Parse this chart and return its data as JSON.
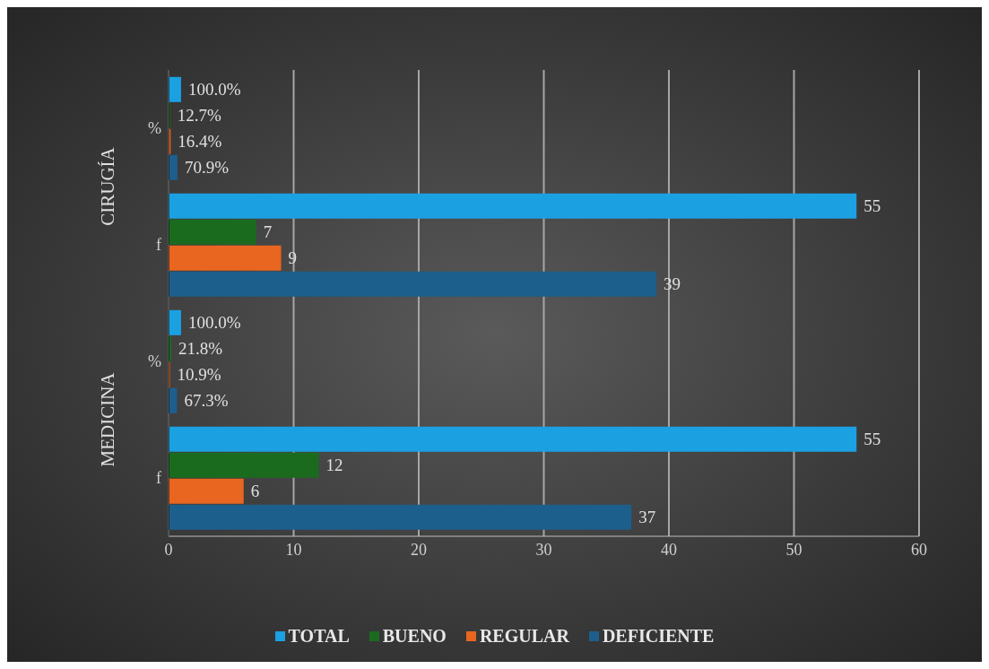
{
  "chart_data": {
    "type": "bar",
    "orientation": "horizontal",
    "categories": [
      "%",
      "f",
      "%",
      "f"
    ],
    "annotations": [
      "CIRUGÍA",
      "MEDICINA"
    ],
    "series": [
      {
        "name": "TOTAL",
        "color": "#1ba1e2",
        "values": [
          1.0,
          55,
          1.0,
          55
        ],
        "value_labels": [
          "100.0%",
          "55",
          "100.0%",
          "55"
        ]
      },
      {
        "name": "BUENO",
        "color": "#1b6b1f",
        "values": [
          0.127,
          7,
          0.218,
          12
        ],
        "value_labels": [
          "12.7%",
          "7",
          "21.8%",
          "12"
        ]
      },
      {
        "name": "REGULAR",
        "color": "#e8661f",
        "values": [
          0.164,
          9,
          0.109,
          6
        ],
        "value_labels": [
          "16.4%",
          "9",
          "10.9%",
          "6"
        ]
      },
      {
        "name": "DEFICIENTE",
        "color": "#1d5f8c",
        "values": [
          0.709,
          39,
          0.673,
          37
        ],
        "value_labels": [
          "70.9%",
          "39",
          "67.3%",
          "37"
        ]
      }
    ],
    "xlim": [
      0,
      60
    ],
    "xticks": [
      0,
      10,
      20,
      30,
      40,
      50,
      60
    ],
    "grid": "x",
    "legend": "bottom"
  }
}
